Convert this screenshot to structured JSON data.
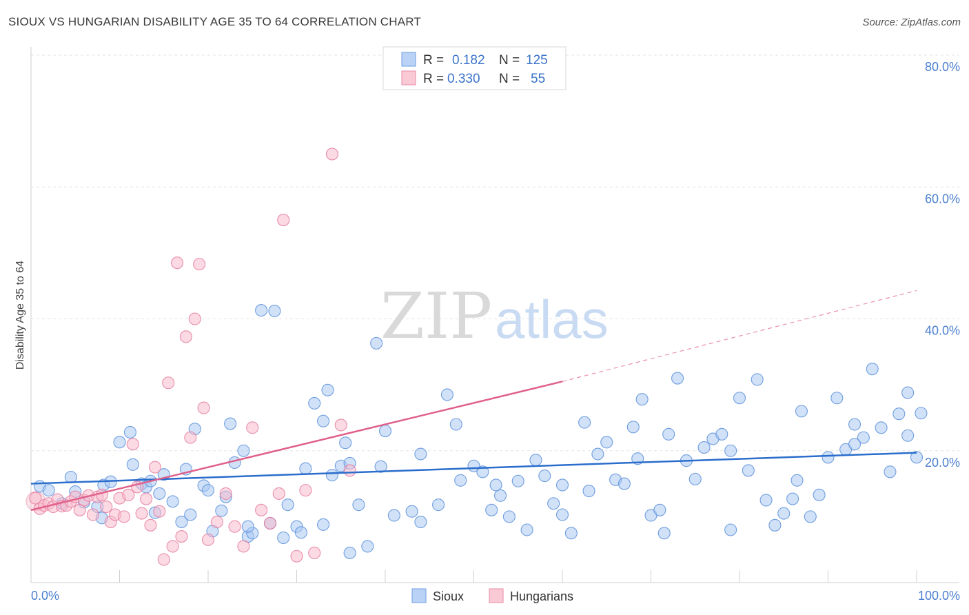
{
  "title": "SIOUX VS HUNGARIAN DISABILITY AGE 35 TO 64 CORRELATION CHART",
  "source": "Source: ZipAtlas.com",
  "watermark": {
    "zip": "ZIP",
    "atlas": "atlas"
  },
  "legend": {
    "r_label": "R =",
    "n_label": "N =",
    "rows": [
      {
        "r": "0.182",
        "n": "125",
        "fill": "#b9d2f5",
        "stroke": "#6f9ee0"
      },
      {
        "r": "0.330",
        "n": "55",
        "fill": "#f9c9d6",
        "stroke": "#e98aa8"
      }
    ]
  },
  "bottom_legend": [
    {
      "label": "Sioux",
      "fill": "#b9d2f5",
      "stroke": "#6f9ee0"
    },
    {
      "label": "Hungarians",
      "fill": "#f9c9d6",
      "stroke": "#e98aa8"
    }
  ],
  "colors": {
    "sioux_fill": "#a9c8f2",
    "sioux_stroke": "#5b8fd9",
    "sioux_line": "#2a6dcc",
    "hung_fill": "#f7bccd",
    "hung_stroke": "#e57b9d",
    "hung_line": "#e0608a",
    "grid": "#e3e3e3",
    "axis_tick": "#4a7fd0"
  },
  "chart_data": {
    "type": "scatter",
    "ylabel": "Disability Age 35 to 64",
    "xlim": [
      0,
      100
    ],
    "ylim": [
      0,
      80
    ],
    "x_tick_labels": [
      "0.0%",
      "100.0%"
    ],
    "y_ticks": [
      20,
      40,
      60,
      80
    ],
    "y_tick_labels": [
      "20.0%",
      "40.0%",
      "60.0%",
      "80.0%"
    ],
    "grid": "horizontal dashed",
    "series": [
      {
        "name": "Sioux",
        "trend": {
          "x": [
            0,
            100
          ],
          "y": [
            15.0,
            19.7
          ]
        },
        "points": [
          [
            1,
            14.6
          ],
          [
            2,
            14
          ],
          [
            3.5,
            12
          ],
          [
            4.5,
            16
          ],
          [
            5,
            13.8
          ],
          [
            6,
            12.2
          ],
          [
            7.5,
            11.5
          ],
          [
            8,
            9.8
          ],
          [
            8.2,
            14.8
          ],
          [
            9,
            15.3
          ],
          [
            10,
            21.3
          ],
          [
            11.2,
            22.8
          ],
          [
            11.5,
            17.9
          ],
          [
            12.5,
            15
          ],
          [
            13,
            14.5
          ],
          [
            13.5,
            15.4
          ],
          [
            14,
            10.6
          ],
          [
            14.5,
            13.5
          ],
          [
            15,
            16.4
          ],
          [
            16,
            12.3
          ],
          [
            17,
            9.2
          ],
          [
            17.5,
            17.2
          ],
          [
            18,
            10.3
          ],
          [
            18.5,
            23.3
          ],
          [
            19.5,
            14.7
          ],
          [
            20,
            14
          ],
          [
            20.5,
            7.8
          ],
          [
            21.5,
            10.9
          ],
          [
            22,
            13
          ],
          [
            22.5,
            24.1
          ],
          [
            23,
            18.2
          ],
          [
            24,
            20
          ],
          [
            24.5,
            7
          ],
          [
            25,
            7.5
          ],
          [
            26,
            41.3
          ],
          [
            27,
            9
          ],
          [
            27.5,
            41.2
          ],
          [
            28.5,
            6.8
          ],
          [
            29,
            11.8
          ],
          [
            30,
            8.5
          ],
          [
            30.5,
            7.6
          ],
          [
            31,
            17.3
          ],
          [
            32,
            27.2
          ],
          [
            33,
            24.5
          ],
          [
            33.5,
            29.2
          ],
          [
            34,
            16.3
          ],
          [
            35,
            17.7
          ],
          [
            35.5,
            21.2
          ],
          [
            36,
            18.1
          ],
          [
            37,
            11.8
          ],
          [
            38,
            5.5
          ],
          [
            39,
            36.3
          ],
          [
            39.5,
            17.6
          ],
          [
            40,
            23
          ],
          [
            41,
            10.2
          ],
          [
            43,
            10.8
          ],
          [
            44,
            9.2
          ],
          [
            46,
            11.8
          ],
          [
            47,
            28.5
          ],
          [
            48,
            24
          ],
          [
            50,
            17.7
          ],
          [
            51,
            16.8
          ],
          [
            52,
            11
          ],
          [
            53,
            13.2
          ],
          [
            54,
            10
          ],
          [
            55,
            15.4
          ],
          [
            56,
            8
          ],
          [
            57,
            18.6
          ],
          [
            58,
            16.2
          ],
          [
            59,
            12
          ],
          [
            60,
            14.8
          ],
          [
            61,
            7.5
          ],
          [
            62.5,
            24.3
          ],
          [
            63,
            13.9
          ],
          [
            65,
            21.3
          ],
          [
            66,
            15.6
          ],
          [
            67,
            15
          ],
          [
            68,
            23.6
          ],
          [
            69,
            27.8
          ],
          [
            70,
            10.2
          ],
          [
            71,
            11
          ],
          [
            72,
            22.5
          ],
          [
            73,
            31
          ],
          [
            74,
            18.5
          ],
          [
            75,
            15.7
          ],
          [
            76,
            20.5
          ],
          [
            77,
            21.8
          ],
          [
            78,
            22.5
          ],
          [
            79,
            20
          ],
          [
            80,
            28
          ],
          [
            81,
            17
          ],
          [
            82,
            30.8
          ],
          [
            83,
            12.5
          ],
          [
            84,
            8.7
          ],
          [
            85,
            10.5
          ],
          [
            86,
            12.7
          ],
          [
            87,
            26
          ],
          [
            88,
            10
          ],
          [
            89,
            13.3
          ],
          [
            90,
            19
          ],
          [
            91,
            28
          ],
          [
            92,
            20.2
          ],
          [
            93,
            24
          ],
          [
            94,
            22
          ],
          [
            95,
            32.4
          ],
          [
            96,
            23.5
          ],
          [
            97,
            16.8
          ],
          [
            98,
            25.6
          ],
          [
            99,
            22.3
          ],
          [
            100,
            19
          ],
          [
            99,
            28.8
          ],
          [
            100.5,
            25.7
          ],
          [
            93,
            21
          ],
          [
            86.5,
            15.5
          ],
          [
            79,
            8
          ],
          [
            71.5,
            7.5
          ],
          [
            60,
            10.3
          ],
          [
            48.5,
            15.5
          ],
          [
            33,
            8.8
          ],
          [
            24.5,
            8.5
          ],
          [
            36,
            4.5
          ],
          [
            44,
            19.5
          ],
          [
            52.5,
            14.8
          ],
          [
            64,
            19.5
          ],
          [
            68.5,
            18.8
          ]
        ]
      },
      {
        "name": "Hungarians",
        "trend": {
          "x": [
            0,
            60
          ],
          "y": [
            11.0,
            30.5
          ]
        },
        "trend_extension": {
          "x": [
            60,
            100
          ],
          "y": [
            30.5,
            44.3
          ]
        },
        "points": [
          [
            0.5,
            12.8
          ],
          [
            1,
            11.2
          ],
          [
            1.5,
            11.7
          ],
          [
            2,
            12
          ],
          [
            2.5,
            11.5
          ],
          [
            3,
            12.6
          ],
          [
            3.5,
            11.6
          ],
          [
            4,
            11.7
          ],
          [
            4.5,
            12.3
          ],
          [
            5,
            13
          ],
          [
            5.5,
            11
          ],
          [
            6,
            12.5
          ],
          [
            6.5,
            13.2
          ],
          [
            7,
            10.3
          ],
          [
            7.5,
            13
          ],
          [
            8,
            13.3
          ],
          [
            8.5,
            11.5
          ],
          [
            9,
            9.2
          ],
          [
            9.5,
            10.3
          ],
          [
            10,
            12.8
          ],
          [
            10.5,
            10
          ],
          [
            11,
            13.3
          ],
          [
            11.5,
            21
          ],
          [
            12,
            14.5
          ],
          [
            12.5,
            10.5
          ],
          [
            13,
            12.7
          ],
          [
            13.5,
            8.7
          ],
          [
            14,
            17.5
          ],
          [
            14.5,
            10.8
          ],
          [
            15,
            3.5
          ],
          [
            15.5,
            30.3
          ],
          [
            16,
            5.5
          ],
          [
            16.5,
            48.5
          ],
          [
            17,
            7
          ],
          [
            17.5,
            37.3
          ],
          [
            18,
            22
          ],
          [
            18.5,
            40
          ],
          [
            19,
            48.3
          ],
          [
            19.5,
            26.5
          ],
          [
            20,
            6.5
          ],
          [
            21,
            9.2
          ],
          [
            22,
            13.5
          ],
          [
            23,
            8.5
          ],
          [
            24,
            5.5
          ],
          [
            25,
            23.5
          ],
          [
            26,
            11
          ],
          [
            27,
            9
          ],
          [
            28,
            13.5
          ],
          [
            28.5,
            55
          ],
          [
            30,
            4
          ],
          [
            31,
            14
          ],
          [
            32,
            4.5
          ],
          [
            34,
            65
          ],
          [
            35,
            23.9
          ],
          [
            36,
            17
          ]
        ]
      }
    ]
  }
}
